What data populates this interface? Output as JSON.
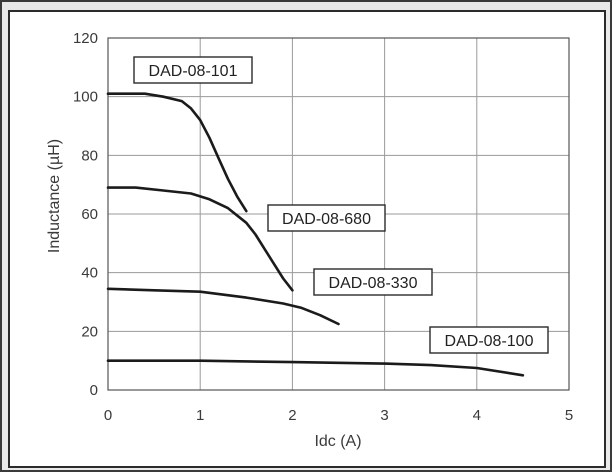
{
  "chart_data": {
    "type": "line",
    "xlabel": "Idc (A)",
    "ylabel": "Inductance (µH)",
    "xlim": [
      0,
      5
    ],
    "ylim": [
      0,
      120
    ],
    "x_ticks": [
      "0",
      "1",
      "2",
      "3",
      "4",
      "5"
    ],
    "y_ticks": [
      "0",
      "20",
      "40",
      "60",
      "80",
      "100",
      "120"
    ],
    "grid": true,
    "series": [
      {
        "name": "DAD-08-101",
        "points": [
          [
            0,
            101
          ],
          [
            0.4,
            101
          ],
          [
            0.6,
            100
          ],
          [
            0.8,
            98.5
          ],
          [
            0.9,
            96
          ],
          [
            1.0,
            92
          ],
          [
            1.1,
            86
          ],
          [
            1.2,
            79
          ],
          [
            1.3,
            72
          ],
          [
            1.4,
            66
          ],
          [
            1.5,
            61
          ]
        ]
      },
      {
        "name": "DAD-08-680",
        "points": [
          [
            0,
            69
          ],
          [
            0.3,
            69
          ],
          [
            0.6,
            68
          ],
          [
            0.9,
            67
          ],
          [
            1.1,
            65
          ],
          [
            1.3,
            62
          ],
          [
            1.5,
            57
          ],
          [
            1.6,
            53
          ],
          [
            1.7,
            48
          ],
          [
            1.8,
            43
          ],
          [
            1.9,
            38
          ],
          [
            2.0,
            34
          ]
        ]
      },
      {
        "name": "DAD-08-330",
        "points": [
          [
            0,
            34.5
          ],
          [
            0.5,
            34
          ],
          [
            1.0,
            33.5
          ],
          [
            1.5,
            31.5
          ],
          [
            1.9,
            29.5
          ],
          [
            2.1,
            28
          ],
          [
            2.3,
            25.5
          ],
          [
            2.5,
            22.5
          ]
        ]
      },
      {
        "name": "DAD-08-100",
        "points": [
          [
            0,
            10
          ],
          [
            1.0,
            10
          ],
          [
            2.0,
            9.5
          ],
          [
            3.0,
            9.0
          ],
          [
            3.5,
            8.5
          ],
          [
            4.0,
            7.5
          ],
          [
            4.5,
            5.0
          ]
        ]
      }
    ]
  }
}
